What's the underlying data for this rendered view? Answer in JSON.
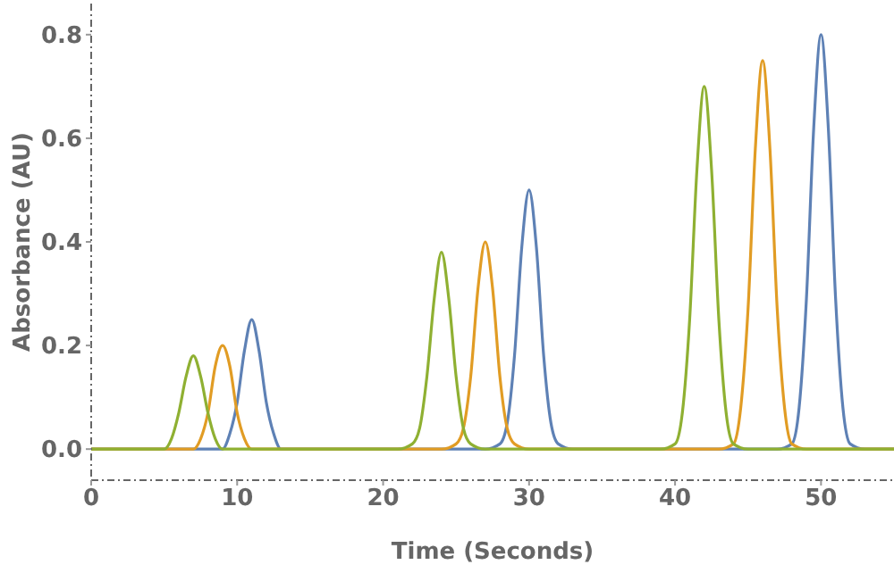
{
  "chart_data": {
    "type": "line",
    "xlabel": "Time (Seconds)",
    "ylabel": "Absorbance (AU)",
    "xlim": [
      0,
      55
    ],
    "ylim": [
      -0.06,
      0.86
    ],
    "xticks": [
      0,
      10,
      20,
      30,
      40,
      50
    ],
    "yticks": [
      {
        "value": 0,
        "label": "0.0"
      },
      {
        "value": 0.2,
        "label": "0.2"
      },
      {
        "value": 0.4,
        "label": "0.4"
      },
      {
        "value": 0.6,
        "label": "0.6"
      },
      {
        "value": 0.8,
        "label": "0.8"
      }
    ],
    "grid": false,
    "legend": false,
    "marker": "none",
    "line_style": "solid",
    "series": [
      {
        "color": "#5e81b5",
        "x": [
          0,
          8,
          9,
          9.5,
          10,
          10.5,
          11,
          11.5,
          12,
          12.5,
          13,
          14,
          27,
          28,
          28.5,
          29,
          29.5,
          30,
          30.5,
          31,
          31.5,
          32,
          33,
          47,
          48,
          48.5,
          49,
          49.5,
          50,
          50.5,
          51,
          51.5,
          52,
          53,
          55
        ],
        "values": [
          0,
          0,
          0,
          0.03,
          0.09,
          0.19,
          0.25,
          0.19,
          0.09,
          0.03,
          0,
          0,
          0,
          0.01,
          0.05,
          0.18,
          0.39,
          0.5,
          0.39,
          0.18,
          0.05,
          0.01,
          0,
          0,
          0.01,
          0.08,
          0.29,
          0.62,
          0.8,
          0.62,
          0.29,
          0.08,
          0.01,
          0,
          0
        ]
      },
      {
        "color": "#e19c24",
        "x": [
          0,
          6,
          7,
          7.5,
          8,
          8.5,
          9,
          9.5,
          10,
          10.5,
          11,
          12,
          24,
          25,
          25.5,
          26,
          26.5,
          27,
          27.5,
          28,
          28.5,
          29,
          30,
          43,
          44,
          44.5,
          45,
          45.5,
          46,
          46.5,
          47,
          47.5,
          48,
          49,
          55
        ],
        "values": [
          0,
          0,
          0,
          0.02,
          0.07,
          0.16,
          0.2,
          0.16,
          0.07,
          0.02,
          0,
          0,
          0,
          0.01,
          0.04,
          0.14,
          0.31,
          0.4,
          0.31,
          0.14,
          0.04,
          0.01,
          0,
          0,
          0.01,
          0.08,
          0.27,
          0.58,
          0.75,
          0.58,
          0.27,
          0.08,
          0.01,
          0,
          0
        ]
      },
      {
        "color": "#8fb032",
        "x": [
          0,
          4,
          5,
          5.5,
          6,
          6.5,
          7,
          7.5,
          8,
          8.5,
          9,
          10,
          21,
          22,
          22.5,
          23,
          23.5,
          24,
          24.5,
          25,
          25.5,
          26,
          27,
          39,
          40,
          40.5,
          41,
          41.5,
          42,
          42.5,
          43,
          43.5,
          44,
          45,
          55
        ],
        "values": [
          0,
          0,
          0,
          0.02,
          0.07,
          0.14,
          0.18,
          0.14,
          0.07,
          0.02,
          0,
          0,
          0,
          0.01,
          0.04,
          0.14,
          0.29,
          0.38,
          0.29,
          0.14,
          0.04,
          0.01,
          0,
          0,
          0.01,
          0.07,
          0.25,
          0.54,
          0.7,
          0.54,
          0.25,
          0.07,
          0.01,
          0,
          0
        ]
      }
    ]
  }
}
